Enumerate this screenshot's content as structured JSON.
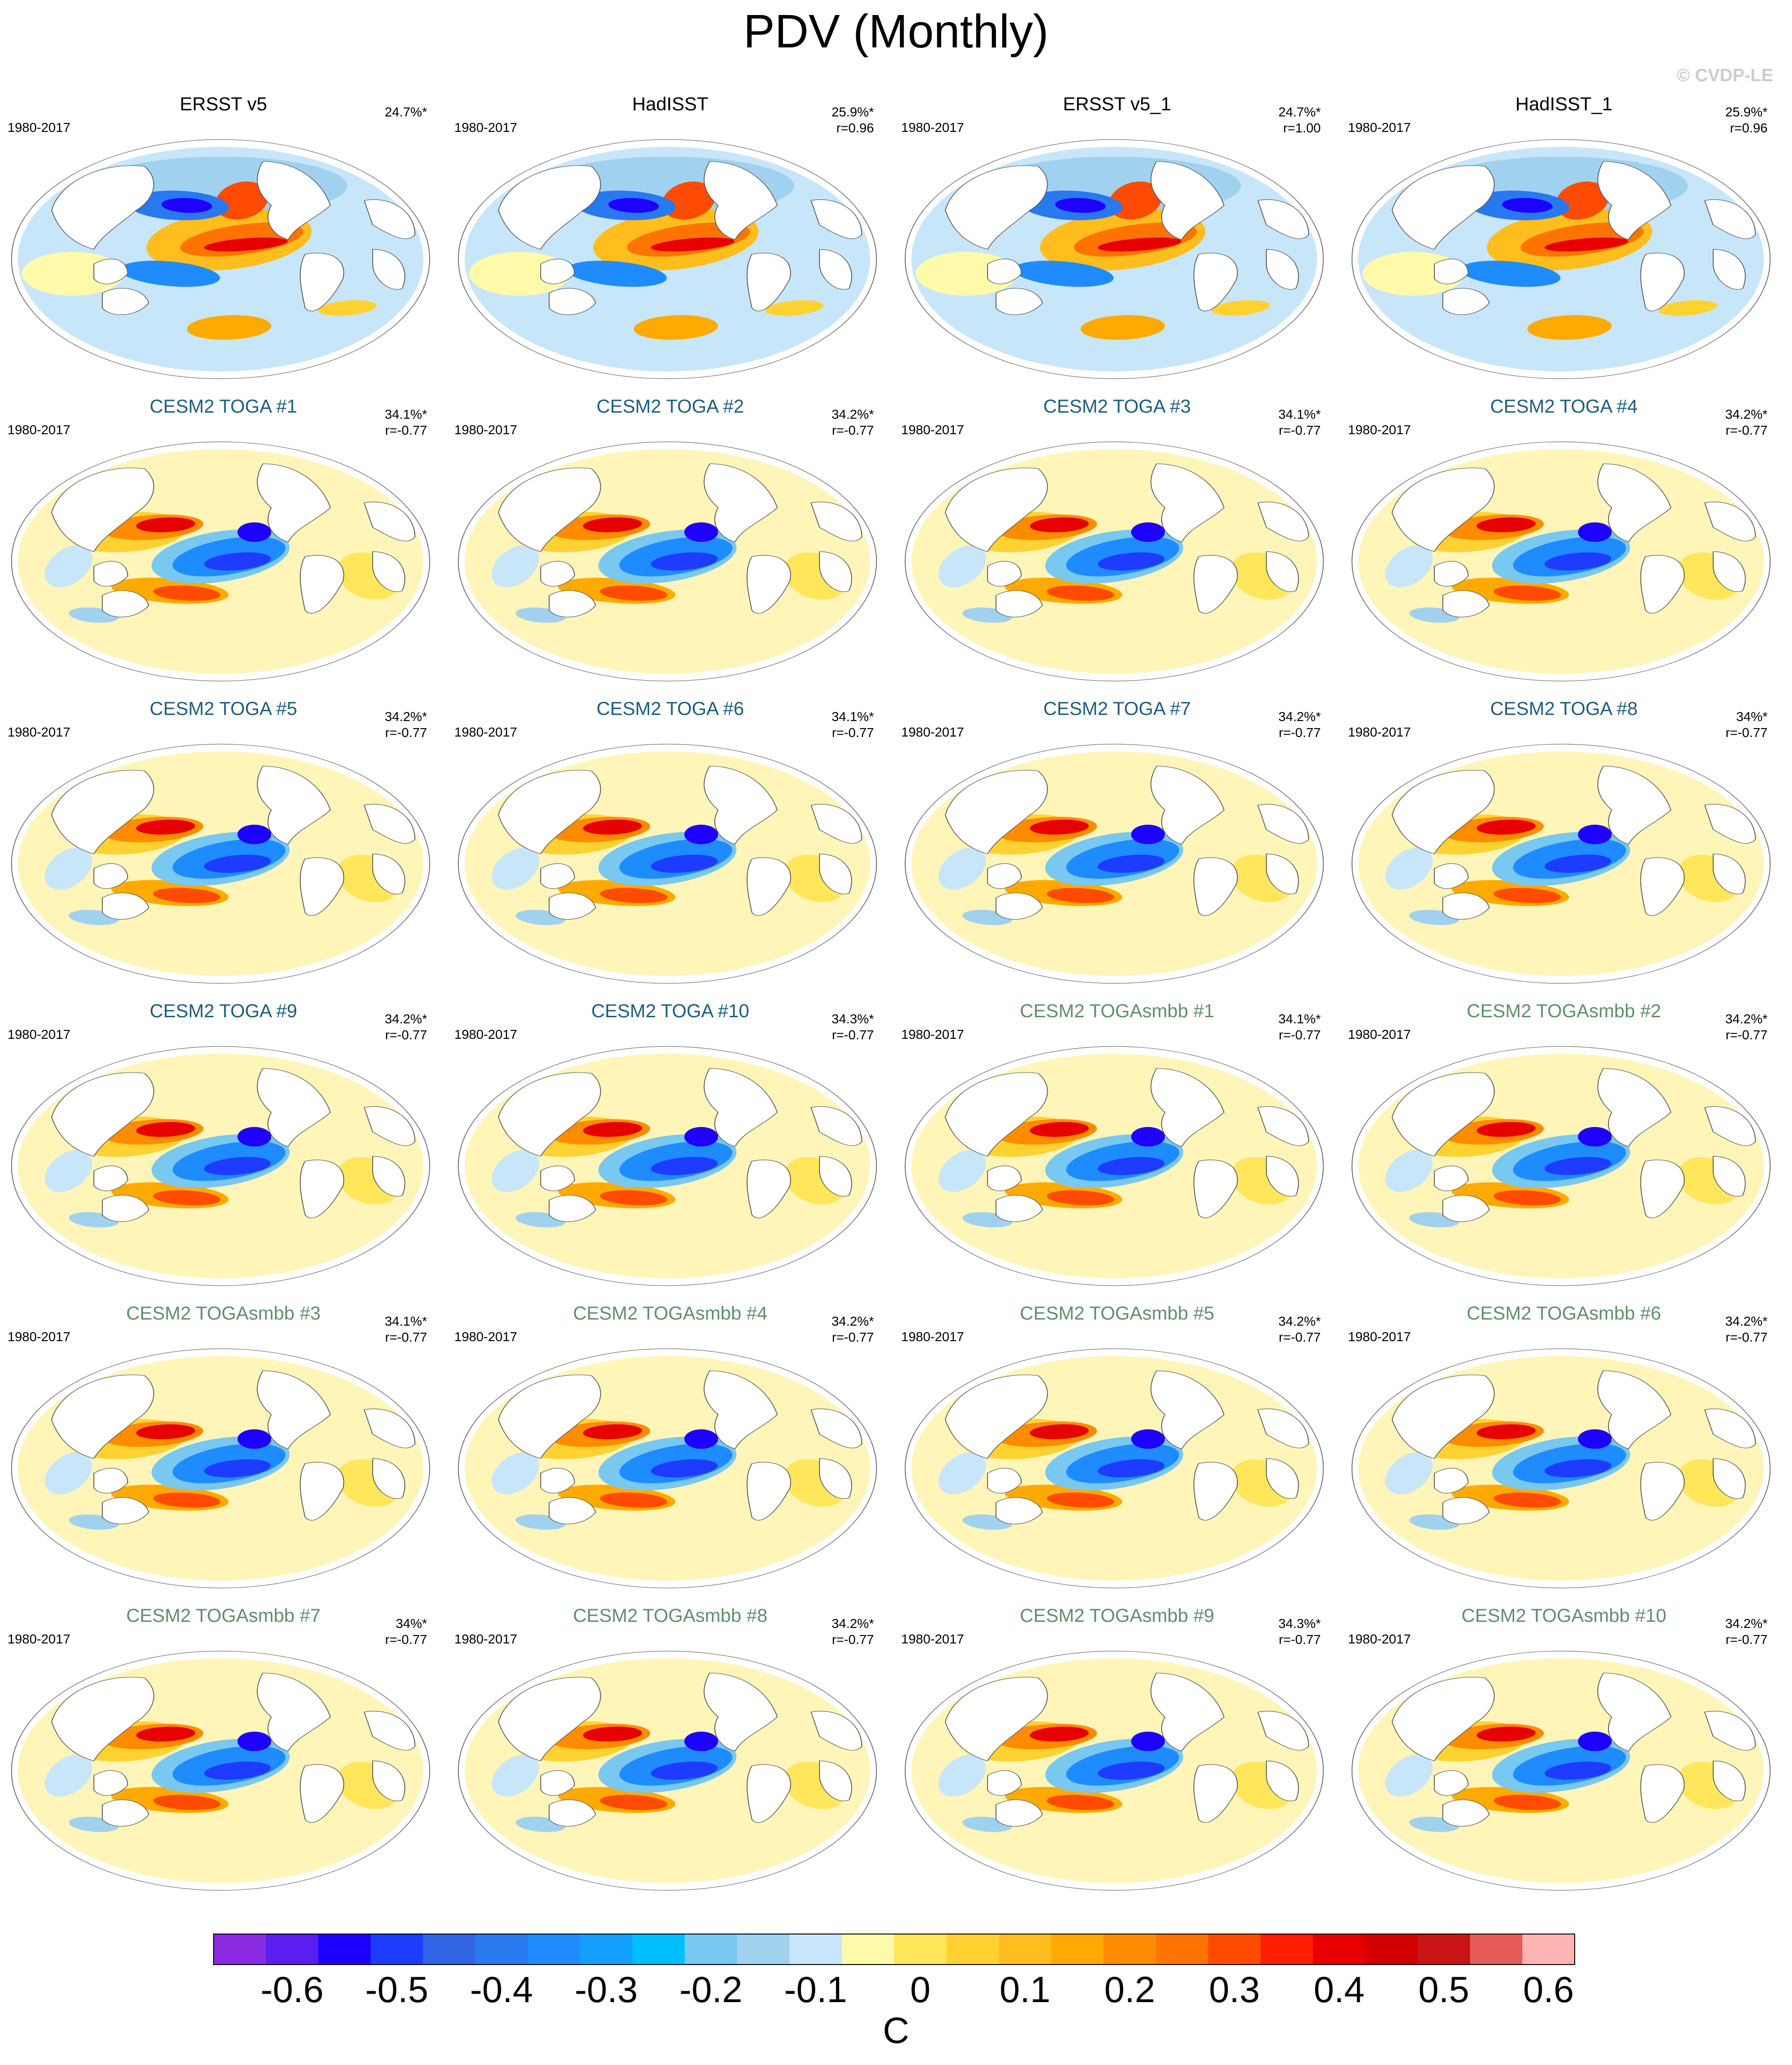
{
  "title": "PDV (Monthly)",
  "copyright": "© CVDP-LE",
  "colors": {
    "obs_title": "#000000",
    "toga_title": "#1b5e80",
    "togasmbb_title": "#5f8f6e",
    "land": "#ffffff",
    "coast": "#555555"
  },
  "panels": [
    {
      "title": "ERSST v5",
      "group": "obs",
      "period": "1980-2017",
      "pct": "24.7%*",
      "r": "",
      "pattern": "obs"
    },
    {
      "title": "HadISST",
      "group": "obs",
      "period": "1980-2017",
      "pct": "25.9%*",
      "r": "r=0.96",
      "pattern": "obs"
    },
    {
      "title": "ERSST v5_1",
      "group": "obs",
      "period": "1980-2017",
      "pct": "24.7%*",
      "r": "r=1.00",
      "pattern": "obs"
    },
    {
      "title": "HadISST_1",
      "group": "obs",
      "period": "1980-2017",
      "pct": "25.9%*",
      "r": "r=0.96",
      "pattern": "obs"
    },
    {
      "title": "CESM2 TOGA #1",
      "group": "toga",
      "period": "1980-2017",
      "pct": "34.1%*",
      "r": "r=-0.77",
      "pattern": "model"
    },
    {
      "title": "CESM2 TOGA #2",
      "group": "toga",
      "period": "1980-2017",
      "pct": "34.2%*",
      "r": "r=-0.77",
      "pattern": "model"
    },
    {
      "title": "CESM2 TOGA #3",
      "group": "toga",
      "period": "1980-2017",
      "pct": "34.1%*",
      "r": "r=-0.77",
      "pattern": "model"
    },
    {
      "title": "CESM2 TOGA #4",
      "group": "toga",
      "period": "1980-2017",
      "pct": "34.2%*",
      "r": "r=-0.77",
      "pattern": "model"
    },
    {
      "title": "CESM2 TOGA #5",
      "group": "toga",
      "period": "1980-2017",
      "pct": "34.2%*",
      "r": "r=-0.77",
      "pattern": "model"
    },
    {
      "title": "CESM2 TOGA #6",
      "group": "toga",
      "period": "1980-2017",
      "pct": "34.1%*",
      "r": "r=-0.77",
      "pattern": "model"
    },
    {
      "title": "CESM2 TOGA #7",
      "group": "toga",
      "period": "1980-2017",
      "pct": "34.2%*",
      "r": "r=-0.77",
      "pattern": "model"
    },
    {
      "title": "CESM2 TOGA #8",
      "group": "toga",
      "period": "1980-2017",
      "pct": "34%*",
      "r": "r=-0.77",
      "pattern": "model"
    },
    {
      "title": "CESM2 TOGA #9",
      "group": "toga",
      "period": "1980-2017",
      "pct": "34.2%*",
      "r": "r=-0.77",
      "pattern": "model"
    },
    {
      "title": "CESM2 TOGA #10",
      "group": "toga",
      "period": "1980-2017",
      "pct": "34.3%*",
      "r": "r=-0.77",
      "pattern": "model"
    },
    {
      "title": "CESM2 TOGAsmbb #1",
      "group": "togasmbb",
      "period": "1980-2017",
      "pct": "34.1%*",
      "r": "r=-0.77",
      "pattern": "model"
    },
    {
      "title": "CESM2 TOGAsmbb #2",
      "group": "togasmbb",
      "period": "1980-2017",
      "pct": "34.2%*",
      "r": "r=-0.77",
      "pattern": "model"
    },
    {
      "title": "CESM2 TOGAsmbb #3",
      "group": "togasmbb",
      "period": "1980-2017",
      "pct": "34.1%*",
      "r": "r=-0.77",
      "pattern": "model"
    },
    {
      "title": "CESM2 TOGAsmbb #4",
      "group": "togasmbb",
      "period": "1980-2017",
      "pct": "34.2%*",
      "r": "r=-0.77",
      "pattern": "model"
    },
    {
      "title": "CESM2 TOGAsmbb #5",
      "group": "togasmbb",
      "period": "1980-2017",
      "pct": "34.2%*",
      "r": "r=-0.77",
      "pattern": "model"
    },
    {
      "title": "CESM2 TOGAsmbb #6",
      "group": "togasmbb",
      "period": "1980-2017",
      "pct": "34.2%*",
      "r": "r=-0.77",
      "pattern": "model"
    },
    {
      "title": "CESM2 TOGAsmbb #7",
      "group": "togasmbb",
      "period": "1980-2017",
      "pct": "34%*",
      "r": "r=-0.77",
      "pattern": "model"
    },
    {
      "title": "CESM2 TOGAsmbb #8",
      "group": "togasmbb",
      "period": "1980-2017",
      "pct": "34.2%*",
      "r": "r=-0.77",
      "pattern": "model"
    },
    {
      "title": "CESM2 TOGAsmbb #9",
      "group": "togasmbb",
      "period": "1980-2017",
      "pct": "34.3%*",
      "r": "r=-0.77",
      "pattern": "model"
    },
    {
      "title": "CESM2 TOGAsmbb #10",
      "group": "togasmbb",
      "period": "1980-2017",
      "pct": "34.2%*",
      "r": "r=-0.77",
      "pattern": "model"
    }
  ],
  "colorbar": {
    "units": "C",
    "colors": [
      "#8a2be2",
      "#5a1ef0",
      "#1e00ff",
      "#1e3cff",
      "#3264e6",
      "#2878f0",
      "#1e8cff",
      "#14a0ff",
      "#00bfff",
      "#78c8f0",
      "#a0d2f0",
      "#c8e6fa",
      "#fffaaa",
      "#ffe65a",
      "#ffd232",
      "#ffbe1e",
      "#ffaa00",
      "#ff8c00",
      "#ff7300",
      "#ff4b00",
      "#ff1e00",
      "#e60000",
      "#d20000",
      "#c81414",
      "#e65a5a",
      "#ffb4b4"
    ],
    "ticks": [
      "-0.6",
      "-0.5",
      "-0.4",
      "-0.3",
      "-0.2",
      "-0.1",
      "0",
      "0.1",
      "0.2",
      "0.3",
      "0.4",
      "0.5",
      "0.6"
    ]
  }
}
